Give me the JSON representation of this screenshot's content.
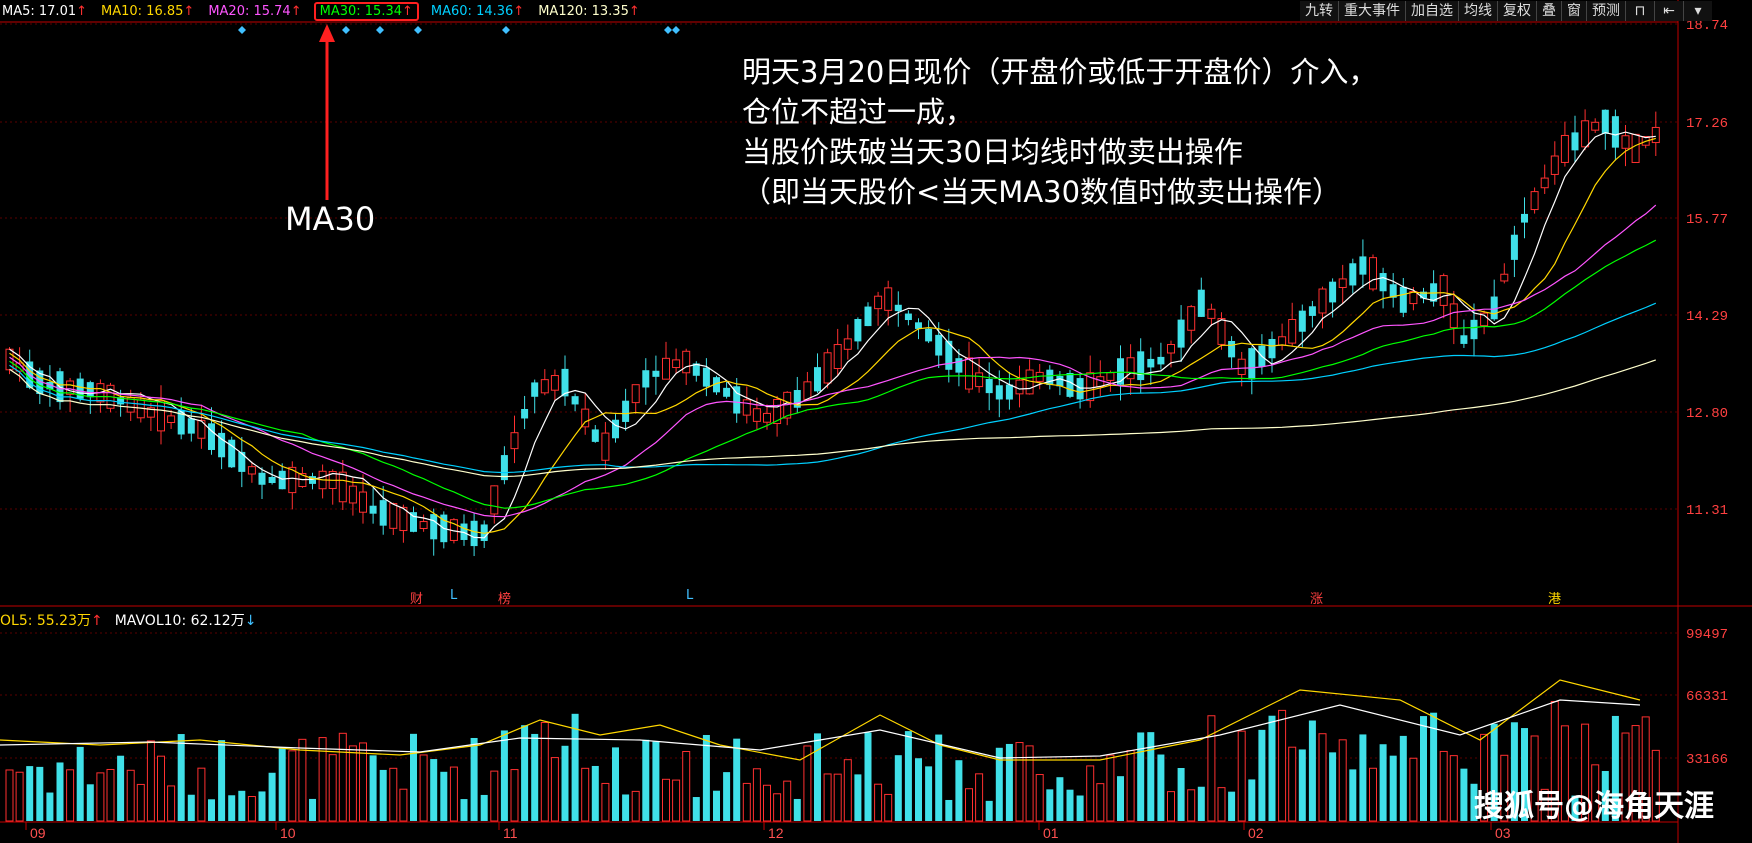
{
  "ma_legend": [
    {
      "label": "MA5: 17.01",
      "color": "#ffffff",
      "trend": "up"
    },
    {
      "label": "MA10: 16.85",
      "color": "#ffd700",
      "trend": "up"
    },
    {
      "label": "MA20: 15.74",
      "color": "#ff55ff",
      "trend": "up"
    },
    {
      "label": "MA30: 15.34",
      "color": "#00ff00",
      "trend": "up",
      "highlight": true
    },
    {
      "label": "MA60: 14.36",
      "color": "#00d0ff",
      "trend": "up"
    },
    {
      "label": "MA120: 13.35",
      "color": "#ffffcc",
      "trend": "up"
    }
  ],
  "toolbar": [
    "九转",
    "重大事件",
    "加自选",
    "均线",
    "复权",
    "叠",
    "窗",
    "预测"
  ],
  "toolbar_icons": [
    "lock-icon",
    "first-page-icon",
    "dropdown-icon"
  ],
  "price_axis": [
    "18.74",
    "17.26",
    "15.77",
    "14.29",
    "12.80",
    "11.31"
  ],
  "volume_axis": [
    "99497",
    "66331",
    "33166"
  ],
  "month_labels": [
    "09",
    "10",
    "11",
    "12",
    "01",
    "02",
    "03"
  ],
  "volume_legend": [
    {
      "label": "OL5: 55.23万",
      "color": "#ffd700",
      "trend": "up"
    },
    {
      "label": "MAVOL10: 62.12万",
      "color": "#ffffff",
      "trend": "down"
    }
  ],
  "events": [
    "财",
    "L",
    "榜",
    "L",
    "涨",
    "港"
  ],
  "annotation": [
    "明天3月20日现价（开盘价或低于开盘价）介入，",
    "仓位不超过一成，",
    "当股价跌破当天30日均线时做卖出操作",
    "（即当天股价<当天MA30数值时做卖出操作）"
  ],
  "ma30_label": "MA30",
  "watermark": "搜狐号@海角天涯",
  "colors": {
    "up": "#ff3030",
    "down": "#40e0e8",
    "background": "#000000",
    "grid": "#8a1010",
    "axis": "#b00000"
  }
}
